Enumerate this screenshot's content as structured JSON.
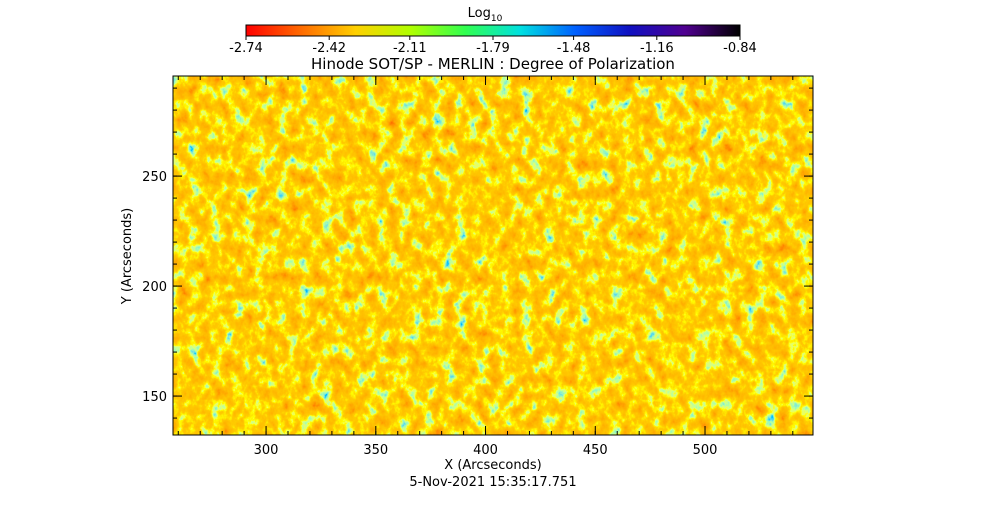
{
  "chart_data": {
    "type": "heatmap",
    "title": "Hinode SOT/SP - MERLIN : Degree of Polarization",
    "x_label": "X (Arcseconds)",
    "y_label": "Y (Arcseconds)",
    "timestamp": "5-Nov-2021 15:35:17.751",
    "xlim": [
      257.6,
      549.2
    ],
    "xticks": [
      300,
      350,
      400,
      450,
      500
    ],
    "ylim": [
      132.3,
      295.5
    ],
    "yticks": [
      150,
      200,
      250
    ],
    "minor_step": 10,
    "colorbar": {
      "title": "Log",
      "title_sub": "10",
      "lim": [
        -2.74,
        -0.84
      ],
      "ticks": [
        -2.74,
        -2.42,
        -2.11,
        -1.79,
        -1.48,
        -1.16,
        -0.84
      ],
      "colormap": [
        "#ff0000",
        "#ff6a00",
        "#ffd000",
        "#b0ff00",
        "#30ff50",
        "#00e0e0",
        "#0060ff",
        "#1010c0",
        "#500090",
        "#000000"
      ]
    }
  }
}
